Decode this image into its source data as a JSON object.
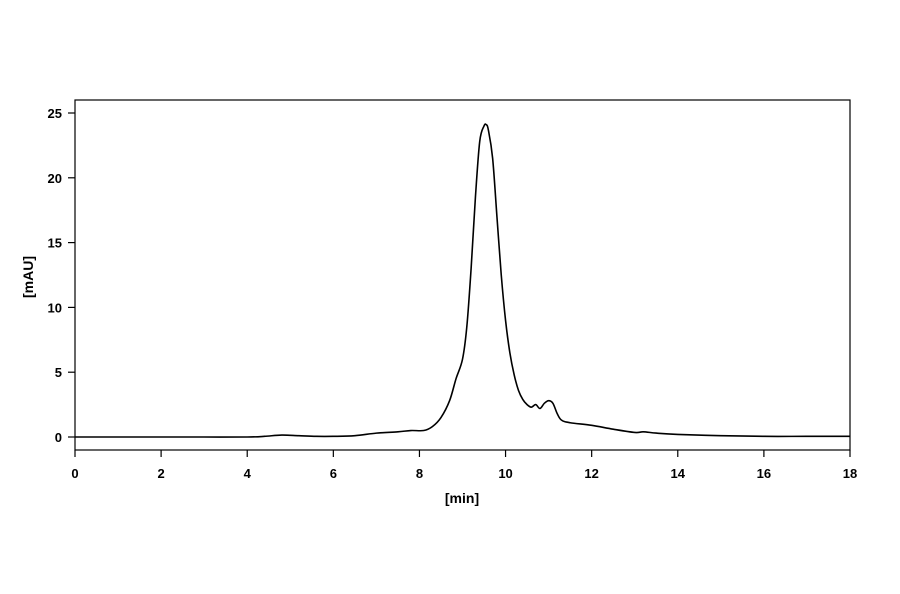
{
  "chart_data": {
    "type": "line",
    "title": "",
    "xlabel": "[min]",
    "ylabel": "[mAU]",
    "xlim": [
      0,
      18
    ],
    "ylim": [
      -1,
      26
    ],
    "xticks": [
      0,
      2,
      4,
      6,
      8,
      10,
      12,
      14,
      16,
      18
    ],
    "yticks": [
      0,
      5,
      10,
      15,
      20,
      25
    ],
    "grid": false,
    "series": [
      {
        "color": "#000000",
        "x": [
          0,
          1,
          2,
          3,
          4,
          4.4,
          4.8,
          5.2,
          5.6,
          6,
          6.5,
          7,
          7.5,
          7.8,
          8.1,
          8.3,
          8.5,
          8.7,
          8.85,
          9.0,
          9.1,
          9.2,
          9.3,
          9.4,
          9.5,
          9.55,
          9.6,
          9.7,
          9.8,
          9.9,
          10.0,
          10.1,
          10.2,
          10.3,
          10.4,
          10.5,
          10.6,
          10.7,
          10.8,
          10.9,
          11.0,
          11.1,
          11.2,
          11.3,
          11.5,
          12.0,
          12.5,
          13.0,
          13.2,
          13.5,
          14.0,
          15.0,
          16.0,
          17.0,
          18.0
        ],
        "y": [
          0.0,
          0.0,
          0.0,
          0.0,
          0.0,
          0.05,
          0.15,
          0.1,
          0.05,
          0.05,
          0.1,
          0.3,
          0.4,
          0.5,
          0.5,
          0.8,
          1.5,
          2.8,
          4.5,
          6.0,
          8.5,
          13.0,
          18.5,
          22.8,
          24.0,
          24.1,
          23.7,
          21.5,
          17.0,
          12.5,
          9.0,
          6.5,
          4.8,
          3.6,
          2.9,
          2.5,
          2.3,
          2.5,
          2.2,
          2.6,
          2.8,
          2.6,
          1.8,
          1.3,
          1.1,
          0.9,
          0.6,
          0.35,
          0.4,
          0.3,
          0.2,
          0.1,
          0.05,
          0.05,
          0.05
        ]
      }
    ]
  }
}
